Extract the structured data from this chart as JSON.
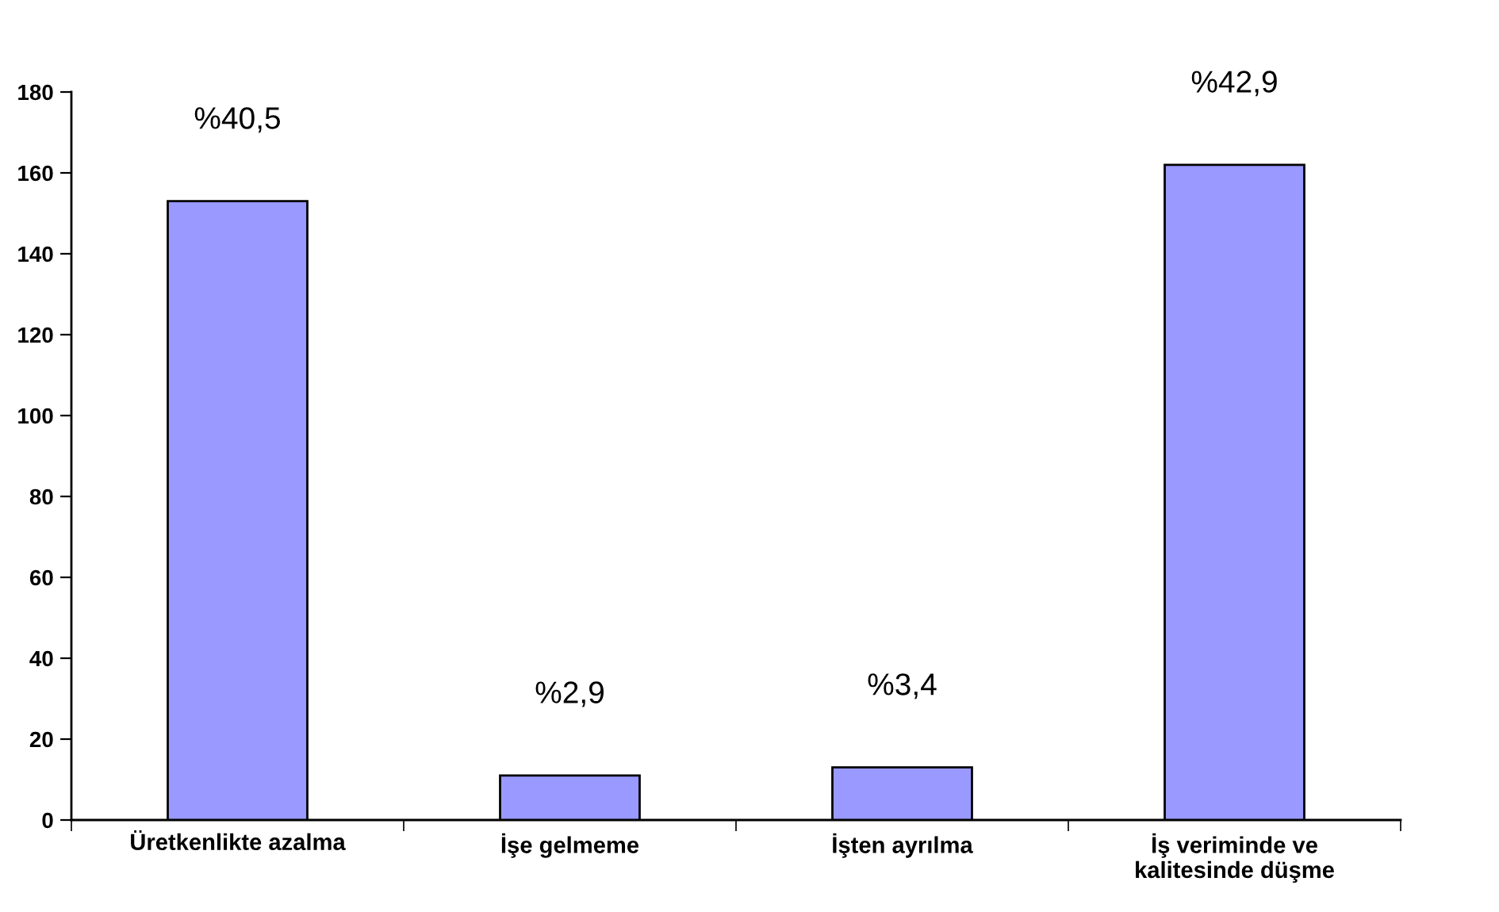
{
  "chart_data": {
    "type": "bar",
    "categories": [
      "Üretkenlikte azalma",
      "İşe gelmeme",
      "İşten ayrılma",
      "İş veriminde ve kalitesinde düşme"
    ],
    "values": [
      153,
      11,
      13,
      162
    ],
    "color": "#9999ff",
    "annotations": [
      {
        "text": "%40,5",
        "x": "Üretkenlikte azalma",
        "y": 153
      },
      {
        "text": "%2,9",
        "x": "İşe gelmeme",
        "y": 11
      },
      {
        "text": "%3,4",
        "x": "İşten ayrılma",
        "y": 13
      },
      {
        "text": "%42,9",
        "x": "İş veriminde ve kalitesinde düşme",
        "y": 162
      }
    ],
    "ylim": [
      0,
      180
    ],
    "yticks": [
      0,
      20,
      40,
      60,
      80,
      100,
      120,
      140,
      160,
      180
    ]
  }
}
